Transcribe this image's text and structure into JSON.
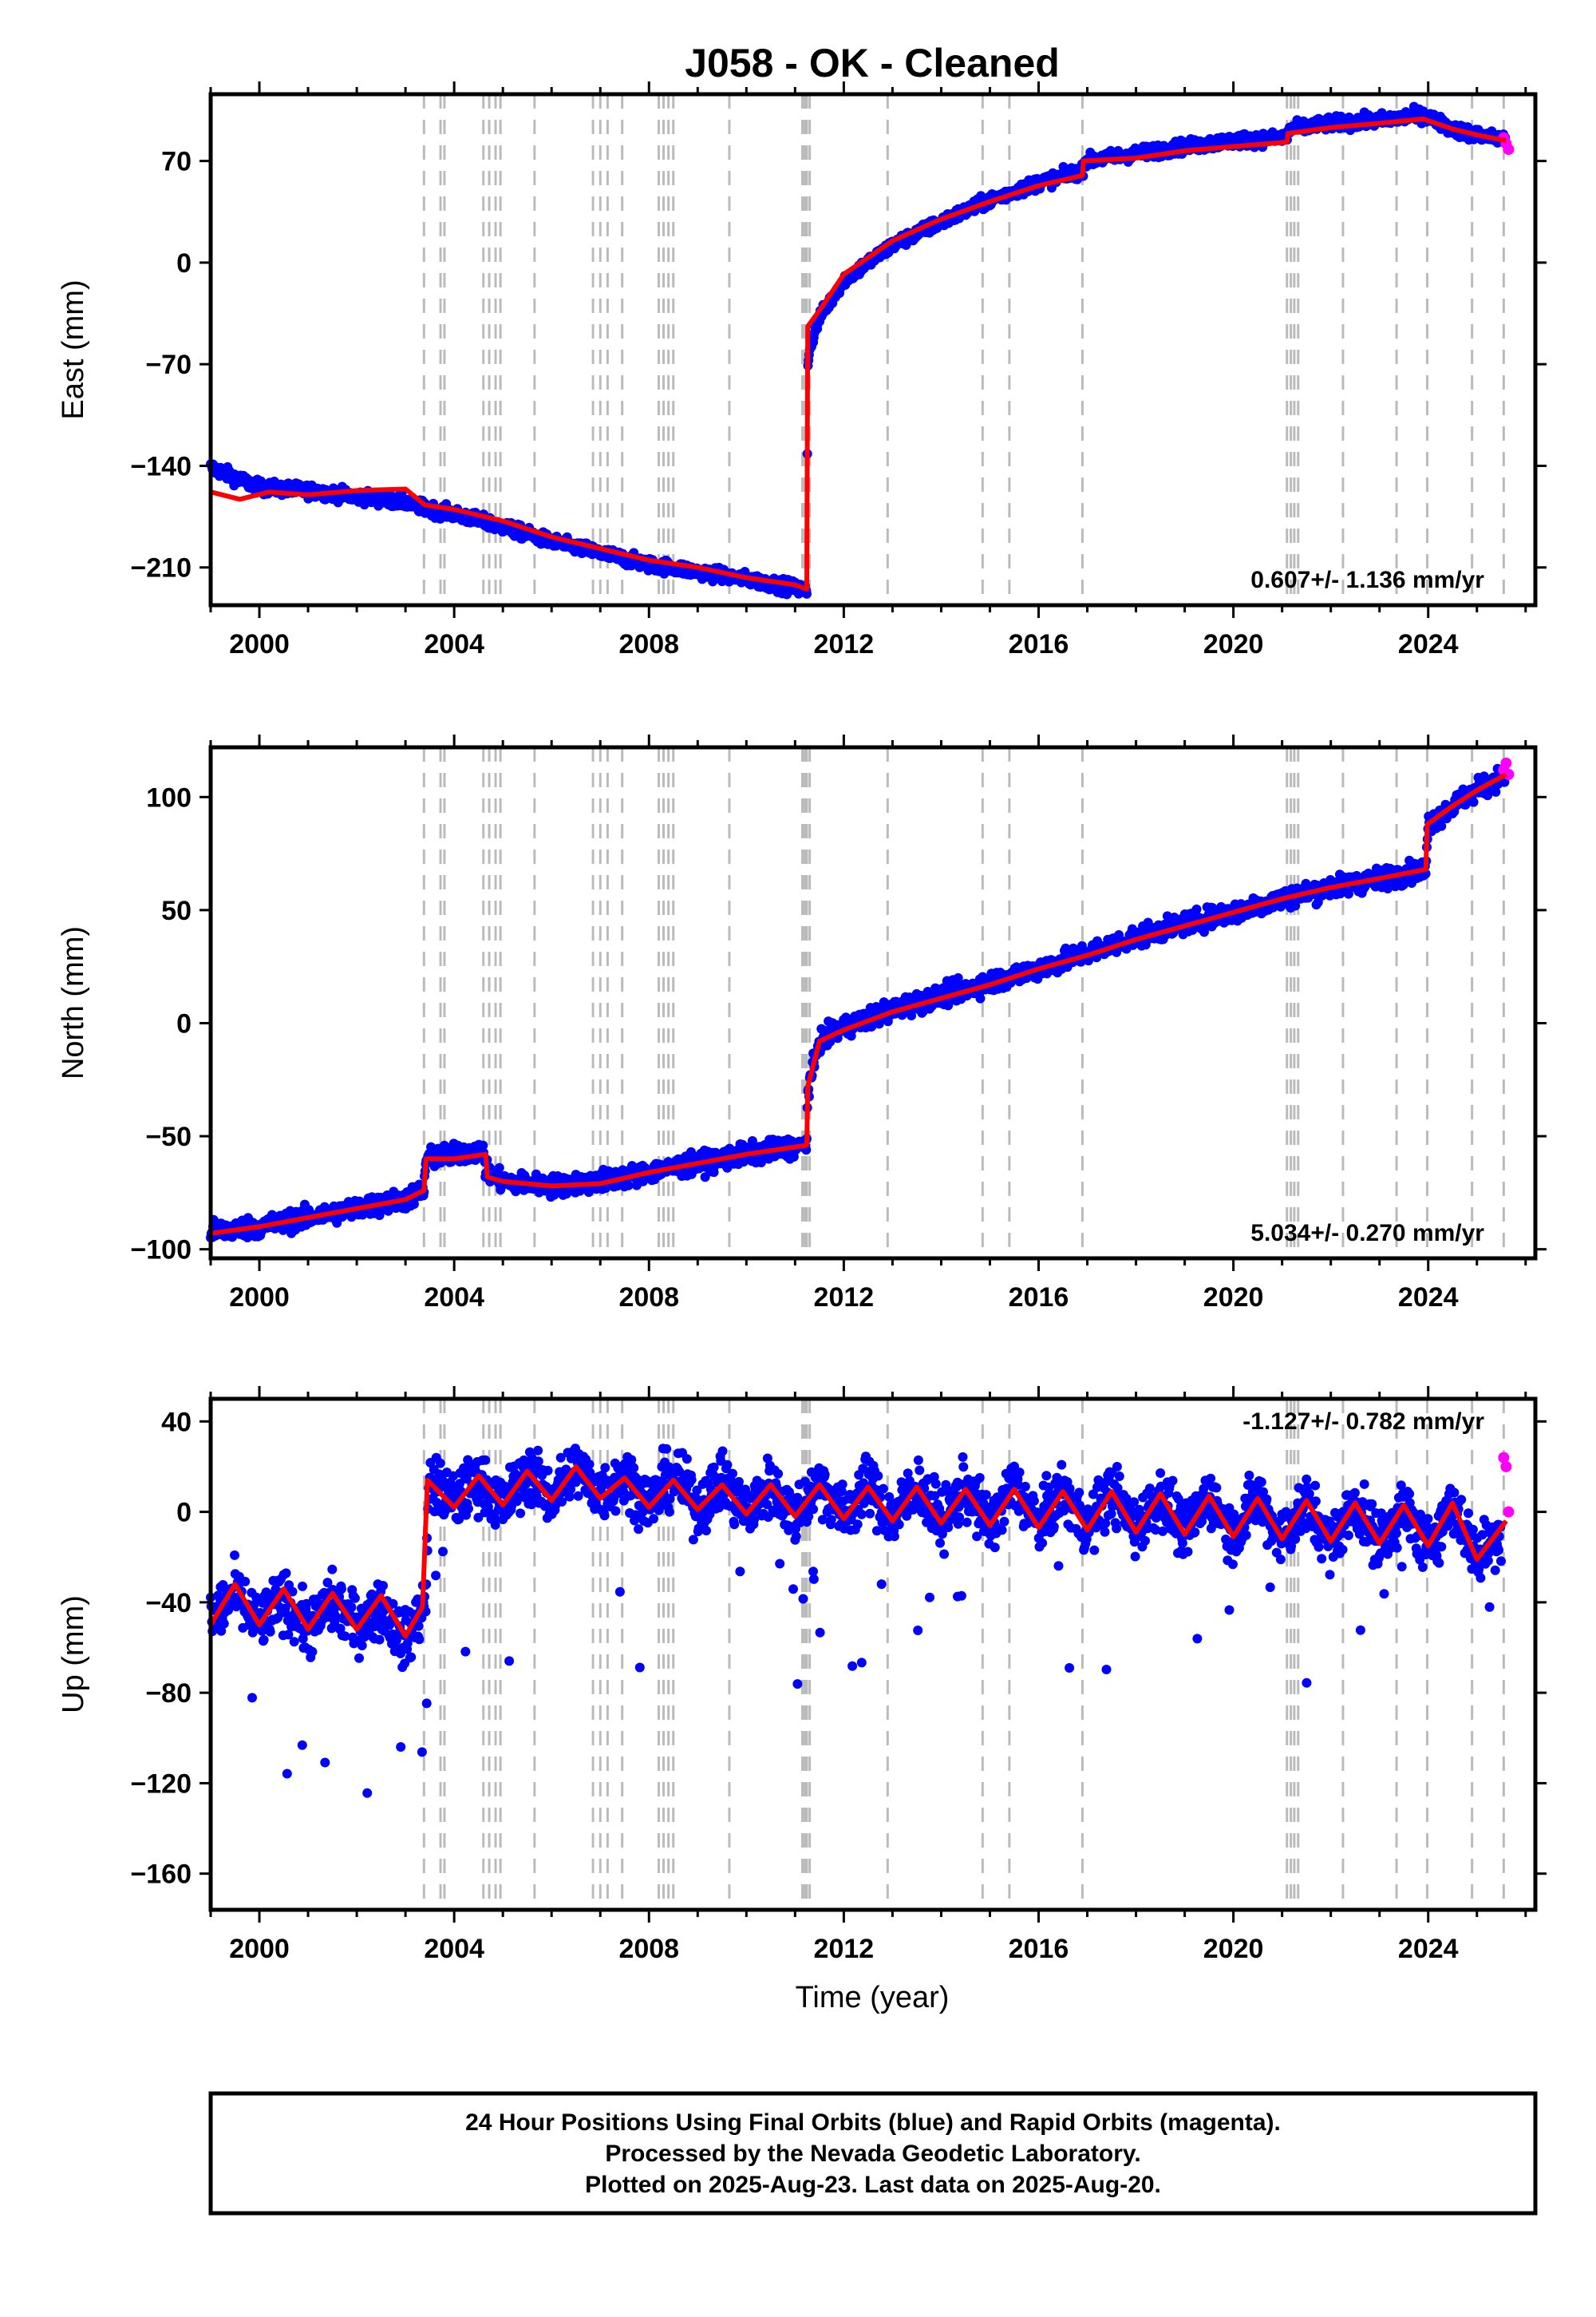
{
  "title": "J058  - OK - Cleaned",
  "colors": {
    "final": "#0000ff",
    "rapid": "#ff00ff",
    "model": "#ff0000",
    "event": "#bbbbbb",
    "frame": "#000000"
  },
  "chart_data": [
    {
      "type": "scatter",
      "panel": "east",
      "ylabel": "East (mm)",
      "xlim": [
        1999.0,
        2026.2
      ],
      "ylim": [
        -236,
        116
      ],
      "yticks": [
        -210,
        -140,
        -70,
        0,
        70
      ],
      "xticks": [
        2000,
        2004,
        2008,
        2012,
        2016,
        2020,
        2024
      ],
      "rate_label": "0.607+/- 1.136 mm/yr",
      "final_series": {
        "name": "Final Orbits",
        "x": [
          1999.0,
          1999.5,
          2000.0,
          2001.0,
          2002.0,
          2003.0,
          2003.4,
          2004.0,
          2005.0,
          2006.0,
          2007.0,
          2008.0,
          2008.5,
          2009.0,
          2010.0,
          2011.0,
          2011.24,
          2011.26,
          2011.3,
          2011.5,
          2012.0,
          2013.0,
          2014.0,
          2015.0,
          2016.0,
          2016.9,
          2016.95,
          2018.0,
          2019.0,
          2020.0,
          2021.1,
          2021.15,
          2022.0,
          2023.0,
          2023.9,
          2024.5,
          2025.0,
          2025.6
        ],
        "y": [
          -141,
          -148,
          -155,
          -157,
          -161,
          -165,
          -169,
          -173,
          -182,
          -192,
          -200,
          -208,
          -210,
          -213,
          -218,
          -224,
          -226,
          -70,
          -58,
          -38,
          -12,
          12,
          28,
          43,
          55,
          63,
          70,
          75,
          80,
          84,
          86,
          92,
          96,
          98,
          102,
          92,
          88,
          85
        ]
      },
      "rapid_series": {
        "name": "Rapid Orbits",
        "x": [
          2025.55,
          2025.6,
          2025.65
        ],
        "y": [
          86,
          82,
          78
        ]
      },
      "model": {
        "x": [
          1999.0,
          1999.6,
          2000.2,
          2001.0,
          2002.0,
          2003.0,
          2003.4,
          2004.0,
          2005.0,
          2006.0,
          2007.0,
          2008.0,
          2009.0,
          2010.0,
          2011.0,
          2011.24,
          2011.26,
          2011.5,
          2012.0,
          2013.0,
          2014.0,
          2015.0,
          2016.0,
          2016.9,
          2016.92,
          2018.0,
          2019.0,
          2020.0,
          2021.1,
          2021.12,
          2022.0,
          2023.0,
          2023.9,
          2024.5,
          2025.0,
          2025.6
        ],
        "y": [
          -158,
          -163,
          -158,
          -160,
          -157,
          -156,
          -167,
          -170,
          -178,
          -189,
          -197,
          -205,
          -210,
          -217,
          -222,
          -225,
          -44,
          -33,
          -8,
          15,
          30,
          42,
          53,
          60,
          70,
          72,
          77,
          80,
          83,
          89,
          93,
          96,
          99,
          92,
          88,
          84
        ]
      }
    },
    {
      "type": "scatter",
      "panel": "north",
      "ylabel": "North (mm)",
      "xlim": [
        1999.0,
        2026.2
      ],
      "ylim": [
        -104,
        122
      ],
      "yticks": [
        -100,
        -50,
        0,
        50,
        100
      ],
      "xticks": [
        2000,
        2004,
        2008,
        2012,
        2016,
        2020,
        2024
      ],
      "rate_label": "5.034+/- 0.270 mm/yr",
      "final_series": {
        "name": "Final Orbits",
        "x": [
          1999.0,
          2000.0,
          2001.0,
          2002.0,
          2003.0,
          2003.38,
          2003.42,
          2004.0,
          2004.6,
          2004.65,
          2005.0,
          2006.0,
          2007.0,
          2008.0,
          2009.0,
          2010.0,
          2011.2,
          2011.24,
          2011.26,
          2011.5,
          2012.0,
          2013.0,
          2014.0,
          2015.0,
          2016.0,
          2017.0,
          2018.0,
          2019.0,
          2020.0,
          2021.0,
          2022.0,
          2023.0,
          2023.95,
          2024.0,
          2024.5,
          2025.0,
          2025.6
        ],
        "y": [
          -92,
          -90,
          -86,
          -82,
          -78,
          -74,
          -60,
          -58,
          -56,
          -66,
          -70,
          -72,
          -70,
          -66,
          -62,
          -58,
          -54,
          -52,
          -30,
          -8,
          -2,
          6,
          12,
          18,
          24,
          31,
          38,
          44,
          49,
          55,
          60,
          64,
          68,
          88,
          96,
          103,
          110
        ]
      },
      "rapid_series": {
        "name": "Rapid Orbits",
        "x": [
          2025.55,
          2025.6,
          2025.65
        ],
        "y": [
          112,
          115,
          110
        ]
      },
      "model": {
        "x": [
          1999.0,
          2000.0,
          2001.0,
          2002.0,
          2003.0,
          2003.38,
          2003.42,
          2004.0,
          2004.65,
          2004.68,
          2005.0,
          2006.0,
          2007.0,
          2008.0,
          2009.0,
          2010.0,
          2011.24,
          2011.26,
          2011.5,
          2012.0,
          2013.0,
          2014.0,
          2015.0,
          2016.0,
          2017.0,
          2018.0,
          2019.0,
          2020.0,
          2021.0,
          2022.0,
          2023.0,
          2023.95,
          2023.98,
          2024.5,
          2025.0,
          2025.6
        ],
        "y": [
          -93,
          -90,
          -86,
          -82,
          -78,
          -74,
          -60,
          -60,
          -58,
          -68,
          -70,
          -72,
          -71,
          -66,
          -62,
          -58,
          -54,
          -28,
          -8,
          -3,
          5,
          11,
          17,
          24,
          30,
          37,
          43,
          49,
          55,
          60,
          64,
          68,
          88,
          96,
          103,
          110
        ]
      }
    },
    {
      "type": "scatter",
      "panel": "up",
      "ylabel": "Up (mm)",
      "xlabel": "Time (year)",
      "xlim": [
        1999.0,
        2026.2
      ],
      "ylim": [
        -176,
        50
      ],
      "yticks": [
        -160,
        -120,
        -80,
        -40,
        0,
        40
      ],
      "xticks": [
        2000,
        2004,
        2008,
        2012,
        2016,
        2020,
        2024
      ],
      "rate_label": "-1.127+/- 0.782 mm/yr",
      "final_series": {
        "name": "Final Orbits",
        "x": [
          1999.0,
          1999.5,
          2000.0,
          2000.5,
          2001.0,
          2001.5,
          2002.0,
          2002.5,
          2003.0,
          2003.4,
          2003.5,
          2004.0,
          2004.5,
          2005.0,
          2005.5,
          2006.0,
          2006.5,
          2007.0,
          2007.5,
          2008.0,
          2008.5,
          2009.0,
          2009.5,
          2010.0,
          2010.5,
          2011.0,
          2011.5,
          2012.0,
          2012.5,
          2013.0,
          2013.5,
          2014.0,
          2014.5,
          2015.0,
          2015.5,
          2016.0,
          2016.5,
          2017.0,
          2017.5,
          2018.0,
          2018.5,
          2019.0,
          2019.5,
          2020.0,
          2020.5,
          2021.0,
          2021.5,
          2022.0,
          2022.5,
          2023.0,
          2023.5,
          2024.0,
          2024.5,
          2025.0,
          2025.5
        ],
        "y": [
          -48,
          -36,
          -50,
          -38,
          -52,
          -40,
          -50,
          -42,
          -58,
          -40,
          14,
          4,
          14,
          2,
          18,
          6,
          20,
          8,
          16,
          4,
          16,
          2,
          14,
          0,
          12,
          -2,
          14,
          -2,
          12,
          -4,
          12,
          -4,
          10,
          -6,
          12,
          -6,
          10,
          -8,
          10,
          -8,
          8,
          -10,
          8,
          -10,
          6,
          -12,
          4,
          -14,
          4,
          -14,
          2,
          -16,
          4,
          -20,
          -8
        ]
      },
      "rapid_series": {
        "name": "Rapid Orbits",
        "x": [
          2025.55,
          2025.6,
          2025.65
        ],
        "y": [
          24,
          20,
          0
        ]
      },
      "model": {
        "x": [
          1999.0,
          1999.5,
          2000.0,
          2000.5,
          2001.0,
          2001.5,
          2002.0,
          2002.5,
          2003.0,
          2003.35,
          2003.45,
          2004.0,
          2004.5,
          2005.0,
          2005.5,
          2006.0,
          2006.5,
          2007.0,
          2007.5,
          2008.0,
          2008.5,
          2009.0,
          2009.5,
          2010.0,
          2010.5,
          2011.0,
          2011.5,
          2012.0,
          2012.5,
          2013.0,
          2013.5,
          2014.0,
          2014.5,
          2015.0,
          2015.5,
          2016.0,
          2016.5,
          2017.0,
          2017.5,
          2018.0,
          2018.5,
          2019.0,
          2019.5,
          2020.0,
          2020.5,
          2021.0,
          2021.5,
          2022.0,
          2022.5,
          2023.0,
          2023.5,
          2024.0,
          2024.5,
          2025.0,
          2025.6
        ],
        "y": [
          -50,
          -32,
          -50,
          -34,
          -52,
          -36,
          -52,
          -37,
          -55,
          -42,
          14,
          2,
          16,
          3,
          18,
          5,
          20,
          6,
          15,
          2,
          14,
          1,
          12,
          -1,
          12,
          -2,
          12,
          -3,
          11,
          -4,
          11,
          -5,
          10,
          -6,
          10,
          -7,
          9,
          -8,
          9,
          -9,
          8,
          -10,
          7,
          -11,
          6,
          -12,
          5,
          -13,
          4,
          -14,
          3,
          -15,
          4,
          -21,
          -4
        ]
      }
    }
  ],
  "event_years": [
    2003.38,
    2003.72,
    2003.8,
    2004.6,
    2004.72,
    2004.85,
    2004.95,
    2005.65,
    2006.85,
    2007.0,
    2007.15,
    2007.45,
    2008.2,
    2008.3,
    2008.4,
    2008.5,
    2009.65,
    2011.15,
    2011.2,
    2011.24,
    2011.3,
    2012.9,
    2014.85,
    2015.4,
    2016.9,
    2021.1,
    2021.18,
    2021.25,
    2021.33,
    2022.25,
    2023.35,
    2023.98,
    2024.9,
    2025.55
  ],
  "footer": {
    "line1": "24 Hour Positions Using Final Orbits (blue) and Rapid Orbits (magenta).",
    "line2": "Processed by the Nevada Geodetic Laboratory.",
    "line3": "Plotted on 2025-Aug-23. Last data on 2025-Aug-20."
  }
}
